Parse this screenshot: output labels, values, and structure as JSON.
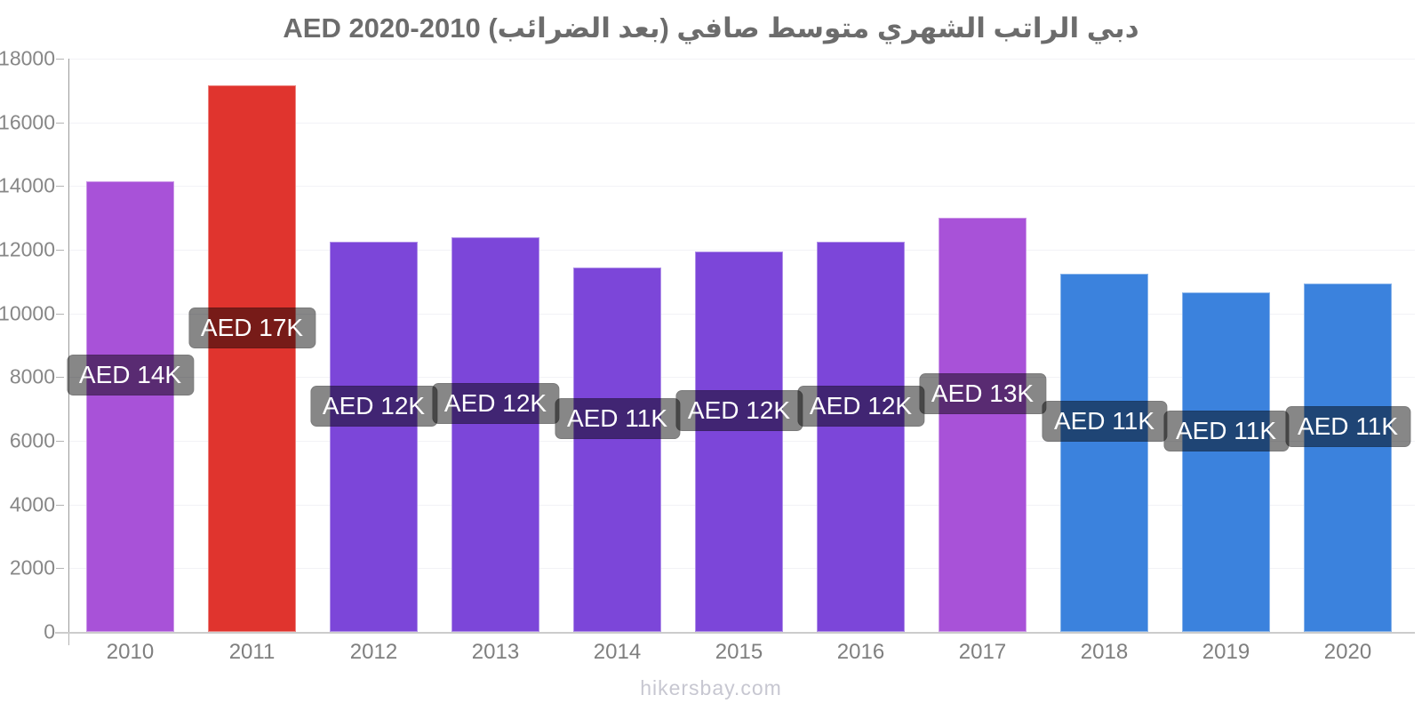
{
  "title": "دبي الراتب الشهري متوسط صافي (بعد الضرائب) AED 2020-2010",
  "watermark": "hikersbay.com",
  "chart_data": {
    "type": "bar",
    "title": "دبي الراتب الشهري متوسط صافي (بعد الضرائب) AED 2020-2010",
    "title_translation": "Dubai average monthly net salary (after taxes) AED 2010-2020",
    "currency": "AED",
    "categories": [
      "2010",
      "2011",
      "2012",
      "2013",
      "2014",
      "2015",
      "2016",
      "2017",
      "2018",
      "2019",
      "2020"
    ],
    "values": [
      14150,
      17150,
      12250,
      12400,
      11450,
      11950,
      12250,
      13000,
      11250,
      10650,
      10950
    ],
    "labels": [
      "AED 14K",
      "AED 17K",
      "AED 12K",
      "AED 12K",
      "AED 11K",
      "AED 12K",
      "AED 12K",
      "AED 13K",
      "AED 11K",
      "AED 11K",
      "AED 11K"
    ],
    "bar_colors": [
      "#a852d8",
      "#e0342e",
      "#7c46d9",
      "#7c46d9",
      "#7c46d9",
      "#7c46d9",
      "#7c46d9",
      "#a852d8",
      "#3b82dd",
      "#3b82dd",
      "#3b82dd"
    ],
    "xlabel": "",
    "ylabel": "",
    "ylim": [
      0,
      18000
    ],
    "y_ticks": [
      0,
      2000,
      4000,
      6000,
      8000,
      10000,
      12000,
      14000,
      16000,
      18000
    ],
    "y_tick_labels": [
      "0",
      "2000",
      "4000",
      "6000",
      "8000",
      "10000",
      "12000",
      "14000",
      "16000",
      "18000"
    ],
    "grid": "faint horizontal gridlines",
    "legend": "none",
    "label_style": {
      "background": "rgba(0,0,0,0.47)",
      "text_color": "#ffffff"
    },
    "axis_colors": {
      "y_axis_line": "#9a9a9a",
      "x_axis_line": "#cccccc",
      "tick_label": "#878787"
    }
  }
}
